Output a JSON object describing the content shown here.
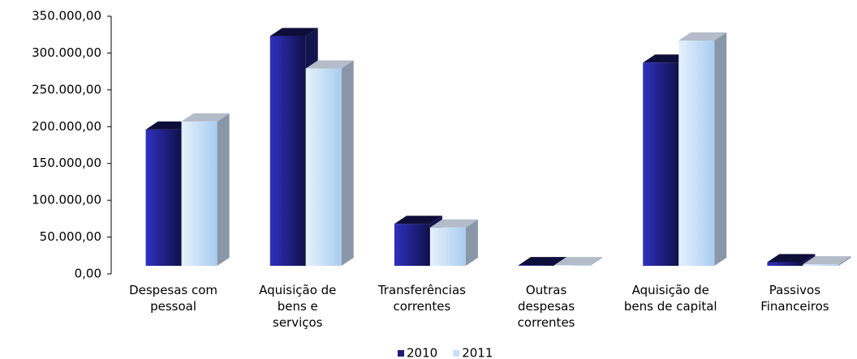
{
  "chart_data": {
    "type": "bar3d",
    "categories": [
      "Despesas com\npessoal",
      "Aquisição de\nbens e\nserviços",
      "Transferências\ncorrentes",
      "Outras\ndespesas\ncorrentes",
      "Aquisição de\nbens de capital",
      "Passivos\nFinanceiros"
    ],
    "series": [
      {
        "name": "2010",
        "color": "#1c1c7a",
        "values": [
          185000,
          312000,
          57000,
          1000,
          276000,
          5000
        ]
      },
      {
        "name": "2011",
        "color": "#c6def6",
        "values": [
          196000,
          268000,
          52000,
          1000,
          306000,
          2000
        ]
      }
    ],
    "ylim": [
      0,
      350000
    ],
    "yticks": [
      {
        "value": 0,
        "label": "0,00"
      },
      {
        "value": 50000,
        "label": "50.000,00"
      },
      {
        "value": 100000,
        "label": "100.000,00"
      },
      {
        "value": 150000,
        "label": "150.000,00"
      },
      {
        "value": 200000,
        "label": "200.000,00"
      },
      {
        "value": 250000,
        "label": "250.000,00"
      },
      {
        "value": 300000,
        "label": "300.000,00"
      },
      {
        "value": 350000,
        "label": "350.000,00"
      }
    ],
    "legend": "bottom"
  }
}
